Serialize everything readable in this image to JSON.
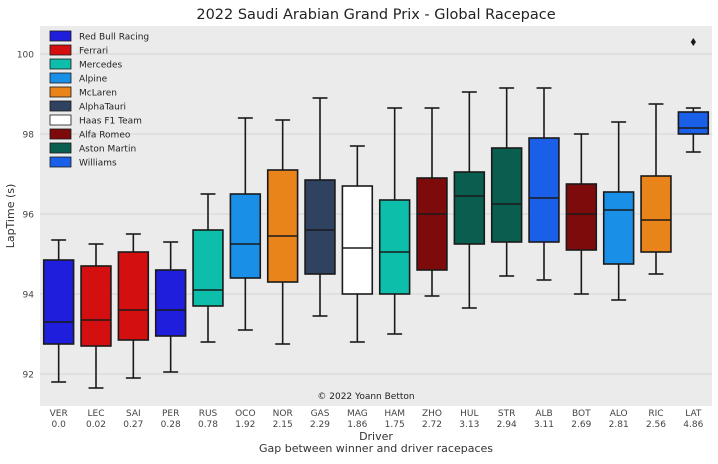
{
  "chart_data": {
    "type": "box",
    "title": "2022 Saudi Arabian Grand Prix - Global Racepace",
    "xlabel": "Driver",
    "xlabel_sub": "Gap between winner and driver racepaces",
    "ylabel": "LapTime (s)",
    "ylim": [
      91.2,
      100.7
    ],
    "yticks": [
      92,
      94,
      96,
      98,
      100
    ],
    "grid": true,
    "legend_position": "top-left",
    "watermark": "© 2022 Yoann Betton",
    "legend": [
      {
        "name": "Red Bull Racing",
        "color": "#1e1edc"
      },
      {
        "name": "Ferrari",
        "color": "#d40f0f"
      },
      {
        "name": "Mercedes",
        "color": "#0dbfaa"
      },
      {
        "name": "Alpine",
        "color": "#1a8fe8"
      },
      {
        "name": "McLaren",
        "color": "#e8841a"
      },
      {
        "name": "AlphaTauri",
        "color": "#2f4360"
      },
      {
        "name": "Haas F1 Team",
        "color": "#ffffff"
      },
      {
        "name": "Alfa Romeo",
        "color": "#7e0b0b"
      },
      {
        "name": "Aston Martin",
        "color": "#0a5e50"
      },
      {
        "name": "Williams",
        "color": "#1a5fe8"
      }
    ],
    "boxes": [
      {
        "driver": "VER",
        "gap": "0.0",
        "team": "Red Bull Racing",
        "min": 91.8,
        "q1": 92.75,
        "median": 93.3,
        "q3": 94.85,
        "max": 95.35,
        "outliers": []
      },
      {
        "driver": "LEC",
        "gap": "0.02",
        "team": "Ferrari",
        "min": 91.65,
        "q1": 92.7,
        "median": 93.35,
        "q3": 94.7,
        "max": 95.25,
        "outliers": []
      },
      {
        "driver": "SAI",
        "gap": "0.27",
        "team": "Ferrari",
        "min": 91.9,
        "q1": 92.85,
        "median": 93.6,
        "q3": 95.05,
        "max": 95.5,
        "outliers": []
      },
      {
        "driver": "PER",
        "gap": "0.28",
        "team": "Red Bull Racing",
        "min": 92.05,
        "q1": 92.95,
        "median": 93.6,
        "q3": 94.6,
        "max": 95.3,
        "outliers": []
      },
      {
        "driver": "RUS",
        "gap": "0.78",
        "team": "Mercedes",
        "min": 92.8,
        "q1": 93.7,
        "median": 94.1,
        "q3": 95.6,
        "max": 96.5,
        "outliers": []
      },
      {
        "driver": "OCO",
        "gap": "1.92",
        "team": "Alpine",
        "min": 93.1,
        "q1": 94.4,
        "median": 95.25,
        "q3": 96.5,
        "max": 98.4,
        "outliers": []
      },
      {
        "driver": "NOR",
        "gap": "2.15",
        "team": "McLaren",
        "min": 92.75,
        "q1": 94.3,
        "median": 95.45,
        "q3": 97.1,
        "max": 98.35,
        "outliers": []
      },
      {
        "driver": "GAS",
        "gap": "2.29",
        "team": "AlphaTauri",
        "min": 93.45,
        "q1": 94.5,
        "median": 95.6,
        "q3": 96.85,
        "max": 98.9,
        "outliers": []
      },
      {
        "driver": "MAG",
        "gap": "1.86",
        "team": "Haas F1 Team",
        "min": 92.8,
        "q1": 94.0,
        "median": 95.15,
        "q3": 96.7,
        "max": 97.7,
        "outliers": []
      },
      {
        "driver": "HAM",
        "gap": "1.75",
        "team": "Mercedes",
        "min": 93.0,
        "q1": 94.0,
        "median": 95.05,
        "q3": 96.35,
        "max": 98.65,
        "outliers": []
      },
      {
        "driver": "ZHO",
        "gap": "2.72",
        "team": "Alfa Romeo",
        "min": 93.95,
        "q1": 94.6,
        "median": 96.0,
        "q3": 96.9,
        "max": 98.65,
        "outliers": []
      },
      {
        "driver": "HUL",
        "gap": "3.13",
        "team": "Aston Martin",
        "min": 93.65,
        "q1": 95.25,
        "median": 96.45,
        "q3": 97.05,
        "max": 99.05,
        "outliers": []
      },
      {
        "driver": "STR",
        "gap": "2.94",
        "team": "Aston Martin",
        "min": 94.45,
        "q1": 95.3,
        "median": 96.25,
        "q3": 97.65,
        "max": 99.15,
        "outliers": []
      },
      {
        "driver": "ALB",
        "gap": "3.11",
        "team": "Williams",
        "min": 94.35,
        "q1": 95.3,
        "median": 96.4,
        "q3": 97.9,
        "max": 99.15,
        "outliers": []
      },
      {
        "driver": "BOT",
        "gap": "2.69",
        "team": "Alfa Romeo",
        "min": 94.0,
        "q1": 95.1,
        "median": 96.0,
        "q3": 96.75,
        "max": 98.0,
        "outliers": []
      },
      {
        "driver": "ALO",
        "gap": "2.81",
        "team": "Alpine",
        "min": 93.85,
        "q1": 94.75,
        "median": 96.1,
        "q3": 96.55,
        "max": 98.3,
        "outliers": []
      },
      {
        "driver": "RIC",
        "gap": "2.56",
        "team": "McLaren",
        "min": 94.5,
        "q1": 95.05,
        "median": 95.85,
        "q3": 96.95,
        "max": 98.75,
        "outliers": []
      },
      {
        "driver": "LAT",
        "gap": "4.86",
        "team": "Williams",
        "min": 97.55,
        "q1": 98.0,
        "median": 98.15,
        "q3": 98.55,
        "max": 98.65,
        "outliers": [
          100.3
        ]
      }
    ]
  }
}
